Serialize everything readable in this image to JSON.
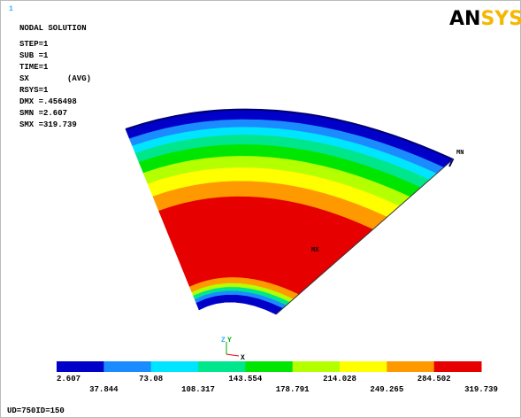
{
  "info": {
    "marker": "1",
    "title": "NODAL SOLUTION",
    "lines": [
      "STEP=1",
      "SUB =1",
      "TIME=1",
      "SX        (AVG)",
      "RSYS=1",
      "DMX =.456498",
      "SMN =2.607",
      "SMX =319.739"
    ]
  },
  "logo": {
    "left": "AN",
    "right": "SYS"
  },
  "model": {
    "min_label": "MN",
    "max_label": "MX"
  },
  "triad": {
    "z": "Z",
    "y": "Y",
    "x": "X"
  },
  "legend": {
    "labels": [
      "2.607",
      "37.844",
      "73.08",
      "108.317",
      "143.554",
      "178.791",
      "214.028",
      "249.265",
      "284.502",
      "319.739"
    ],
    "colors": [
      "#0000c8",
      "#1a8cff",
      "#00e5ff",
      "#00e68c",
      "#00e600",
      "#b4ff00",
      "#ffff00",
      "#ff9900",
      "#e60000"
    ]
  },
  "footer": "UD=750ID=150"
}
